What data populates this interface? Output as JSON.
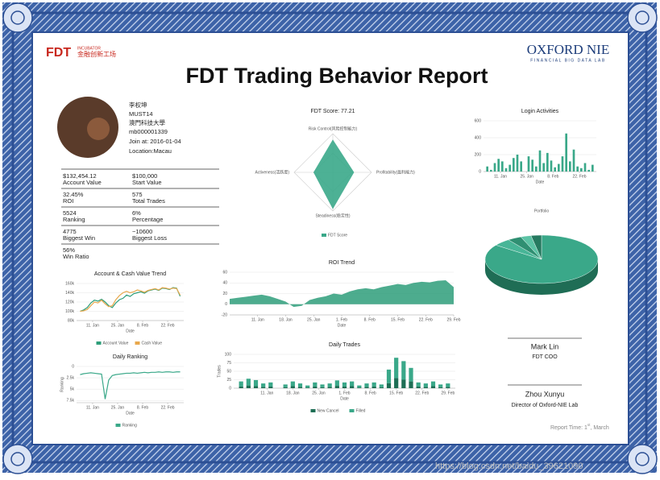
{
  "header": {
    "logo_left": "FDT",
    "logo_left_sub": "INCUBATOR",
    "logo_left_cn": "金融创新工场",
    "logo_right": "OXFORD NIE",
    "logo_right_sub": "FINANCIAL BIG DATA LAB",
    "title": "FDT Trading Behavior Report"
  },
  "profile": {
    "name": "李权坤",
    "id": "MUST14",
    "school": "澳門科技大學",
    "account": "mb000001339",
    "join": "Join at: 2016-01-04",
    "location": "Location:Macau"
  },
  "stats": [
    [
      {
        "value": "$132,454.12",
        "label": "Account Value"
      },
      {
        "value": "$100,000",
        "label": "Start Value"
      }
    ],
    [
      {
        "value": "32.45%",
        "label": "ROI"
      },
      {
        "value": "575",
        "label": "Total Trades"
      }
    ],
    [
      {
        "value": "5524",
        "label": "Ranking"
      },
      {
        "value": "6%",
        "label": "Percentage"
      }
    ],
    [
      {
        "value": "4775",
        "label": "Biggest Win"
      },
      {
        "value": "−10600",
        "label": "Biggest Loss"
      }
    ],
    [
      {
        "value": "56%",
        "label": "Win Ratio"
      }
    ]
  ],
  "charts": {
    "radar": {
      "type": "radar",
      "title": "FDT Score: 77.21",
      "legend": "FDT Score",
      "color": "#3aa889",
      "rlim": [
        0,
        100
      ],
      "axes": [
        {
          "name": "Risk Control(风险控制能力)",
          "value": 85
        },
        {
          "name": "Profitability(盈利能力)",
          "value": 55
        },
        {
          "name": "Steadiness(稳定性)",
          "value": 95
        },
        {
          "name": "Activeness(活跃度)",
          "value": 50
        }
      ]
    },
    "login": {
      "type": "bar",
      "title": "Login Activities",
      "xlabel": "Date",
      "x": [
        4,
        6,
        8,
        10,
        12,
        14,
        16,
        18,
        20,
        22,
        24,
        26,
        28,
        30,
        32,
        34,
        36,
        38,
        40,
        42,
        44,
        46,
        48,
        50,
        52,
        54,
        56,
        58,
        60
      ],
      "xlim": [
        2,
        62
      ],
      "xticks": [
        {
          "value": 11,
          "label": "11. Jan"
        },
        {
          "value": 25,
          "label": "25. Jan"
        },
        {
          "value": 39,
          "label": "8. Feb"
        },
        {
          "value": 53,
          "label": "22. Feb"
        }
      ],
      "ylim": [
        0,
        600
      ],
      "yticks": [
        0,
        200,
        400,
        600
      ],
      "series": [
        {
          "color": "#3aa889",
          "values": [
            60,
            20,
            100,
            150,
            120,
            40,
            80,
            160,
            200,
            120,
            0,
            180,
            140,
            60,
            250,
            100,
            220,
            130,
            50,
            90,
            180,
            450,
            120,
            260,
            60,
            40,
            100,
            20,
            80
          ]
        }
      ]
    },
    "portfolio": {
      "type": "pie",
      "title": "Portfolio",
      "values": [
        85,
        5,
        4,
        3,
        3
      ],
      "colors": [
        "#3aa889",
        "#48b597",
        "#2f8f72",
        "#5cc3a5",
        "#267a60"
      ]
    },
    "account": {
      "type": "line",
      "title": "Account & Cash Value Trend",
      "xlabel": "Date",
      "x": [
        4,
        6,
        8,
        10,
        12,
        14,
        16,
        18,
        20,
        22,
        24,
        26,
        28,
        30,
        32,
        34,
        36,
        38,
        40,
        42,
        44,
        46,
        48,
        50,
        52,
        54,
        56,
        58,
        60
      ],
      "xlim": [
        2,
        62
      ],
      "xticks": [
        {
          "value": 11,
          "label": "11. Jan"
        },
        {
          "value": 25,
          "label": "25. Jan"
        },
        {
          "value": 39,
          "label": "8. Feb"
        },
        {
          "value": 53,
          "label": "22. Feb"
        }
      ],
      "ylim": [
        80000,
        160000
      ],
      "yticks": [
        {
          "value": 80000,
          "label": "80k"
        },
        {
          "value": 100000,
          "label": "100k"
        },
        {
          "value": 120000,
          "label": "120k"
        },
        {
          "value": 140000,
          "label": "140k"
        },
        {
          "value": 160000,
          "label": "160k"
        }
      ],
      "series": [
        {
          "name": "Account Value",
          "color": "#2e9e7a",
          "values": [
            100000,
            103000,
            108000,
            118000,
            124000,
            122000,
            126000,
            120000,
            112000,
            108000,
            118000,
            125000,
            128000,
            135000,
            132000,
            138000,
            140000,
            142000,
            139000,
            144000,
            146000,
            148000,
            145000,
            150000,
            149000,
            147000,
            151000,
            150000,
            132454
          ]
        },
        {
          "name": "Cash Value",
          "color": "#e8a84c",
          "values": [
            100000,
            101000,
            104000,
            112000,
            120000,
            118000,
            124000,
            116000,
            110000,
            112000,
            125000,
            134000,
            140000,
            143000,
            140000,
            142000,
            146000,
            144000,
            141000,
            145000,
            147000,
            149000,
            146000,
            151000,
            150000,
            148000,
            150000,
            149000,
            135000
          ]
        }
      ]
    },
    "ranking": {
      "type": "line",
      "title": "Daily Ranking",
      "xlabel": "Date",
      "ylabel": "Ranking",
      "x": [
        4,
        6,
        8,
        10,
        12,
        14,
        16,
        18,
        20,
        22,
        24,
        26,
        28,
        30,
        32,
        34,
        36,
        38,
        40,
        42,
        44,
        46,
        48,
        50,
        52,
        54,
        56,
        58,
        60
      ],
      "xlim": [
        2,
        62
      ],
      "xticks": [
        {
          "value": 11,
          "label": "11. Jan"
        },
        {
          "value": 25,
          "label": "25. Jan"
        },
        {
          "value": 39,
          "label": "8. Feb"
        },
        {
          "value": 53,
          "label": "22. Feb"
        }
      ],
      "ylim": [
        8000,
        0
      ],
      "yticks": [
        {
          "value": 0,
          "label": "0"
        },
        {
          "value": 2500,
          "label": "2.5k"
        },
        {
          "value": 5000,
          "label": "5k"
        },
        {
          "value": 7500,
          "label": "7.5k"
        }
      ],
      "series": [
        {
          "name": "Ranking",
          "color": "#3aa889",
          "values": [
            1800,
            1600,
            1500,
            1400,
            1500,
            1600,
            1700,
            7200,
            3000,
            2000,
            1800,
            1700,
            1600,
            1500,
            1500,
            1400,
            1500,
            1400,
            1300,
            1400,
            1300,
            1300,
            1200,
            1300,
            1200,
            1200,
            1300,
            1200,
            1200
          ]
        }
      ]
    },
    "roi": {
      "type": "area",
      "title": "ROI Trend",
      "xlabel": "Date",
      "x": [
        4,
        6,
        8,
        10,
        12,
        14,
        16,
        18,
        20,
        22,
        24,
        26,
        28,
        30,
        32,
        34,
        36,
        38,
        40,
        42,
        44,
        46,
        48,
        50,
        52,
        54,
        56,
        58,
        60
      ],
      "xlim": [
        4,
        60
      ],
      "xticks": [
        {
          "value": 11,
          "label": "11. Jan"
        },
        {
          "value": 18,
          "label": "18. Jan"
        },
        {
          "value": 25,
          "label": "25. Jan"
        },
        {
          "value": 32,
          "label": "1. Feb"
        },
        {
          "value": 39,
          "label": "8. Feb"
        },
        {
          "value": 46,
          "label": "15. Feb"
        },
        {
          "value": 53,
          "label": "22. Feb"
        },
        {
          "value": 60,
          "label": "29. Feb"
        }
      ],
      "ylim": [
        -20,
        60
      ],
      "yticks": [
        -20,
        0,
        20,
        40,
        60
      ],
      "series": [
        {
          "color": "#2e9e7a",
          "values": [
            10,
            12,
            14,
            16,
            18,
            15,
            10,
            5,
            -5,
            -3,
            8,
            12,
            15,
            20,
            18,
            24,
            28,
            30,
            28,
            32,
            35,
            38,
            36,
            40,
            42,
            41,
            44,
            45,
            32
          ]
        }
      ]
    },
    "trades": {
      "type": "stacked-bar",
      "title": "Daily Trades",
      "xlabel": "Date",
      "ylabel": "Trades",
      "x": [
        4,
        6,
        8,
        10,
        12,
        14,
        16,
        18,
        20,
        22,
        24,
        26,
        28,
        30,
        32,
        34,
        36,
        38,
        40,
        42,
        44,
        46,
        48,
        50,
        52,
        54,
        56,
        58,
        60
      ],
      "xlim": [
        2,
        62
      ],
      "xticks": [
        {
          "value": 11,
          "label": "11. Jan"
        },
        {
          "value": 18,
          "label": "18. Jan"
        },
        {
          "value": 25,
          "label": "25. Jan"
        },
        {
          "value": 32,
          "label": "1. Feb"
        },
        {
          "value": 39,
          "label": "8. Feb"
        },
        {
          "value": 46,
          "label": "15. Feb"
        },
        {
          "value": 53,
          "label": "22. Feb"
        },
        {
          "value": 60,
          "label": "29. Feb"
        }
      ],
      "ylim": [
        0,
        100
      ],
      "yticks": [
        0,
        25,
        50,
        75,
        100
      ],
      "series": [
        {
          "name": "New Cancel",
          "color": "#1e6e55",
          "values": [
            5,
            8,
            6,
            4,
            5,
            0,
            3,
            6,
            4,
            2,
            5,
            3,
            4,
            7,
            5,
            6,
            2,
            4,
            5,
            3,
            15,
            30,
            25,
            20,
            5,
            4,
            6,
            3,
            4
          ]
        },
        {
          "name": "Filled",
          "color": "#3aa889",
          "values": [
            15,
            20,
            18,
            10,
            12,
            0,
            8,
            14,
            10,
            6,
            12,
            8,
            10,
            16,
            12,
            14,
            6,
            10,
            12,
            8,
            40,
            60,
            55,
            40,
            12,
            10,
            14,
            8,
            10
          ]
        }
      ]
    }
  },
  "signatures": [
    {
      "name": "Mark  Lin",
      "role": "FDT COO"
    },
    {
      "name": "Zhou Xunyu",
      "role": "Director of Oxford-NIE Lab"
    }
  ],
  "footer": {
    "report_time": "Report Time: 1",
    "report_sup": "st",
    "report_month": ", March",
    "watermark": "https://blog.csdn.net/baidu_39621090"
  }
}
